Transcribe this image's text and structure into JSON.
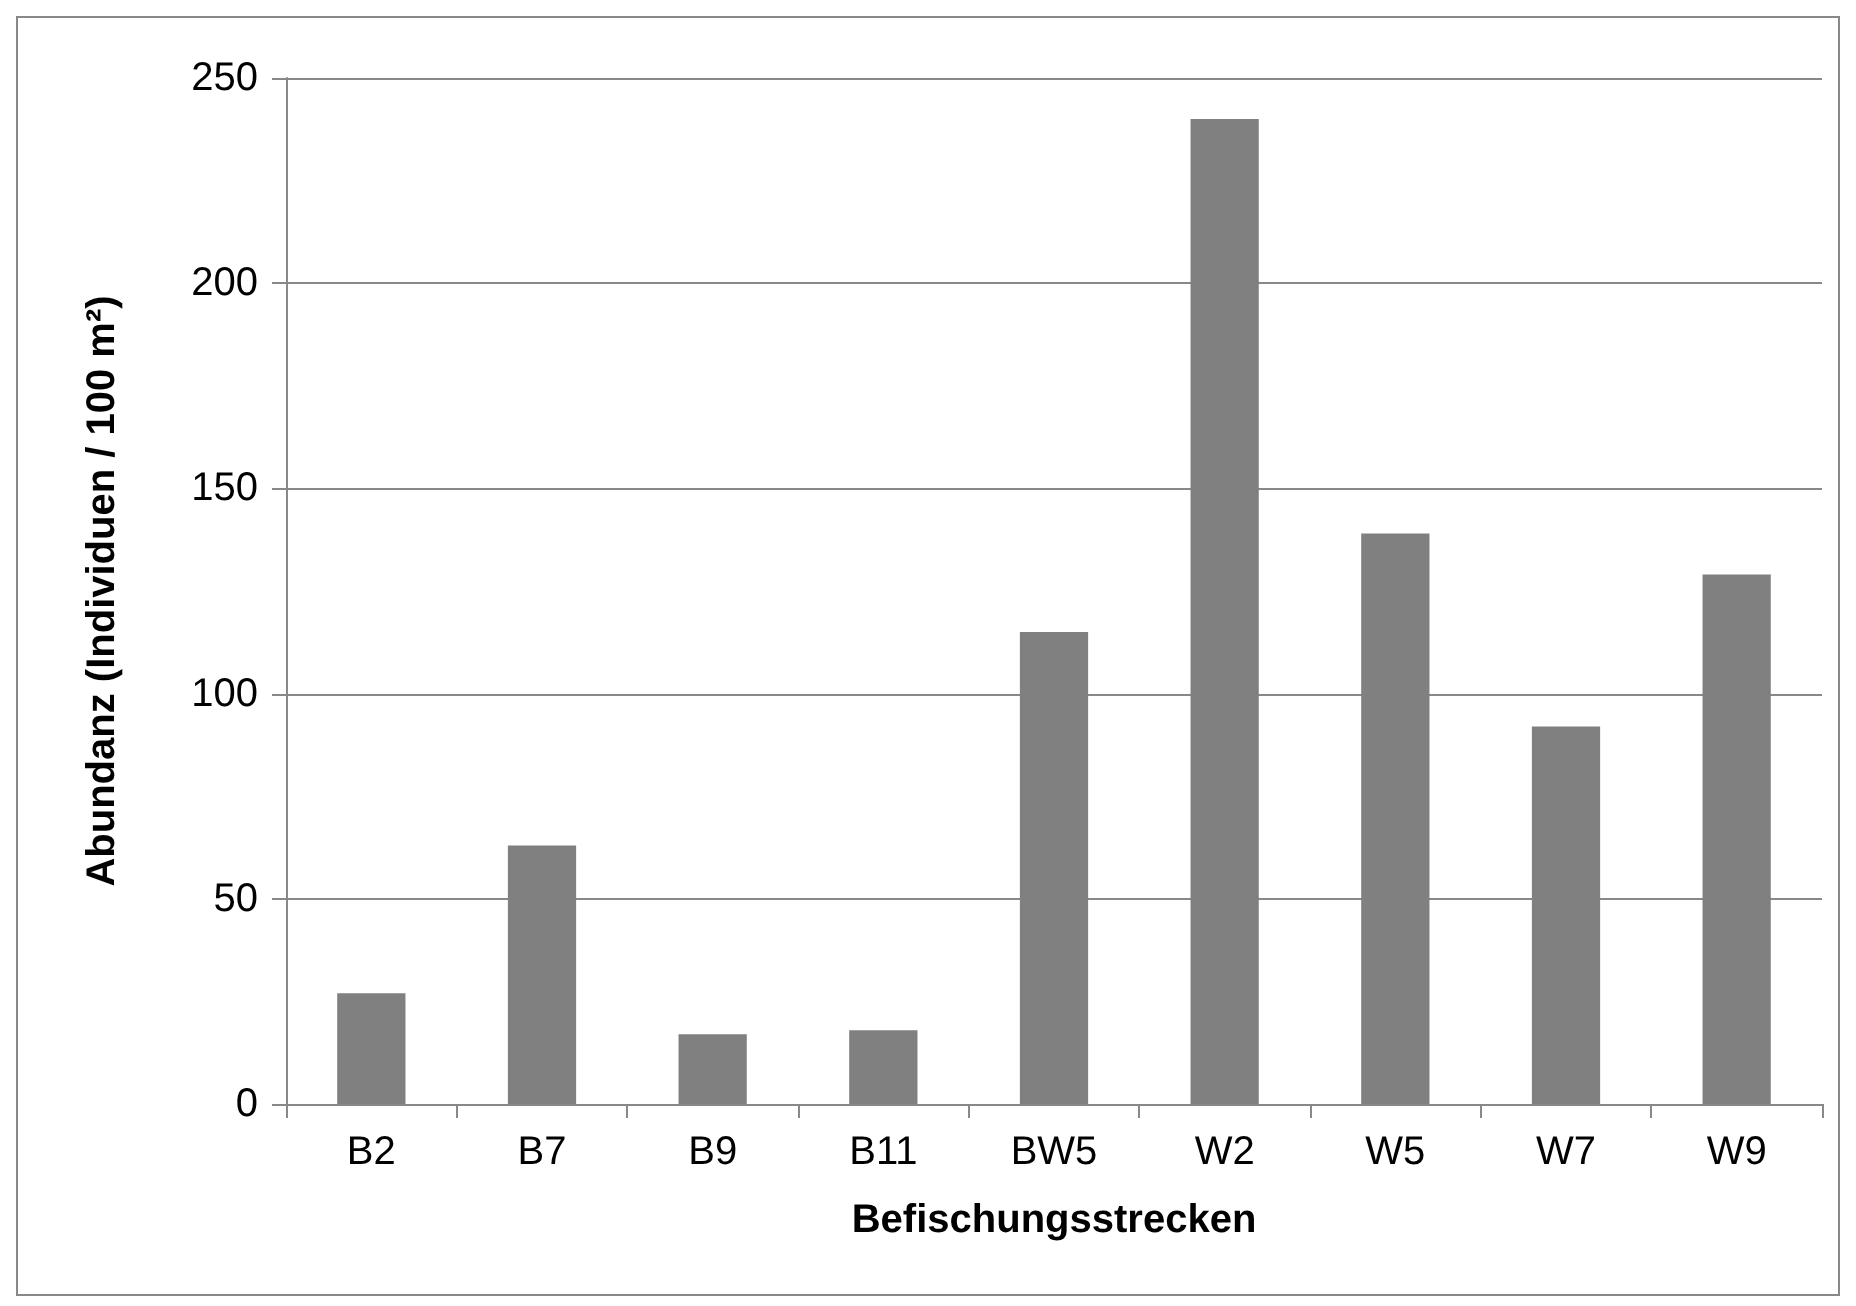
{
  "chart_data": {
    "type": "bar",
    "xlabel": "Befischungsstrecken",
    "ylabel": "Abundanz (Individuen / 100 m²)",
    "categories": [
      "B2",
      "B7",
      "B9",
      "B11",
      "BW5",
      "W2",
      "W5",
      "W7",
      "W9"
    ],
    "values": [
      27,
      63,
      17,
      18,
      115,
      240,
      139,
      92,
      129
    ],
    "color": "#808080",
    "ylim": [
      0,
      250
    ],
    "yticks": [
      0,
      50,
      100,
      150,
      200,
      250
    ],
    "grid": "y"
  }
}
